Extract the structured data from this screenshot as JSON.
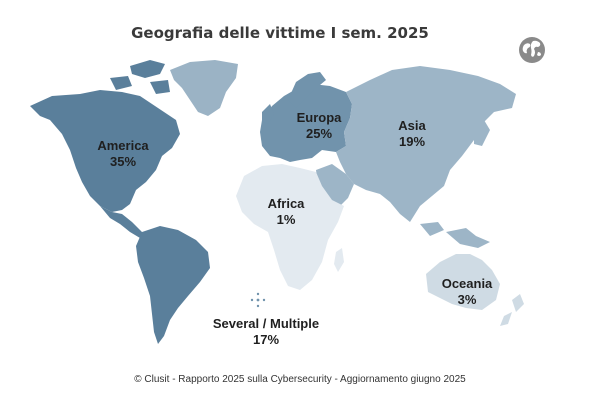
{
  "title": "Geografia delle vittime I sem. 2025",
  "globe_icon": "globe-icon",
  "regions": {
    "america": {
      "name": "America",
      "value": "35%",
      "percent": 35,
      "color": "#5a7f9b"
    },
    "europa": {
      "name": "Europa",
      "value": "25%",
      "percent": 25,
      "color": "#7193ac"
    },
    "asia": {
      "name": "Asia",
      "value": "19%",
      "percent": 19,
      "color": "#9db5c7"
    },
    "africa": {
      "name": "Africa",
      "value": "1%",
      "percent": 1,
      "color": "#e3eaf0"
    },
    "oceania": {
      "name": "Oceania",
      "value": "3%",
      "percent": 3,
      "color": "#cfdbe4"
    },
    "several": {
      "name": "Several / Multiple",
      "value": "17%",
      "percent": 17
    }
  },
  "greenland_color": "#9bb3c5",
  "footer": "© Clusit - Rapporto 2025 sulla Cybersecurity - Aggiornamento giugno 2025"
}
